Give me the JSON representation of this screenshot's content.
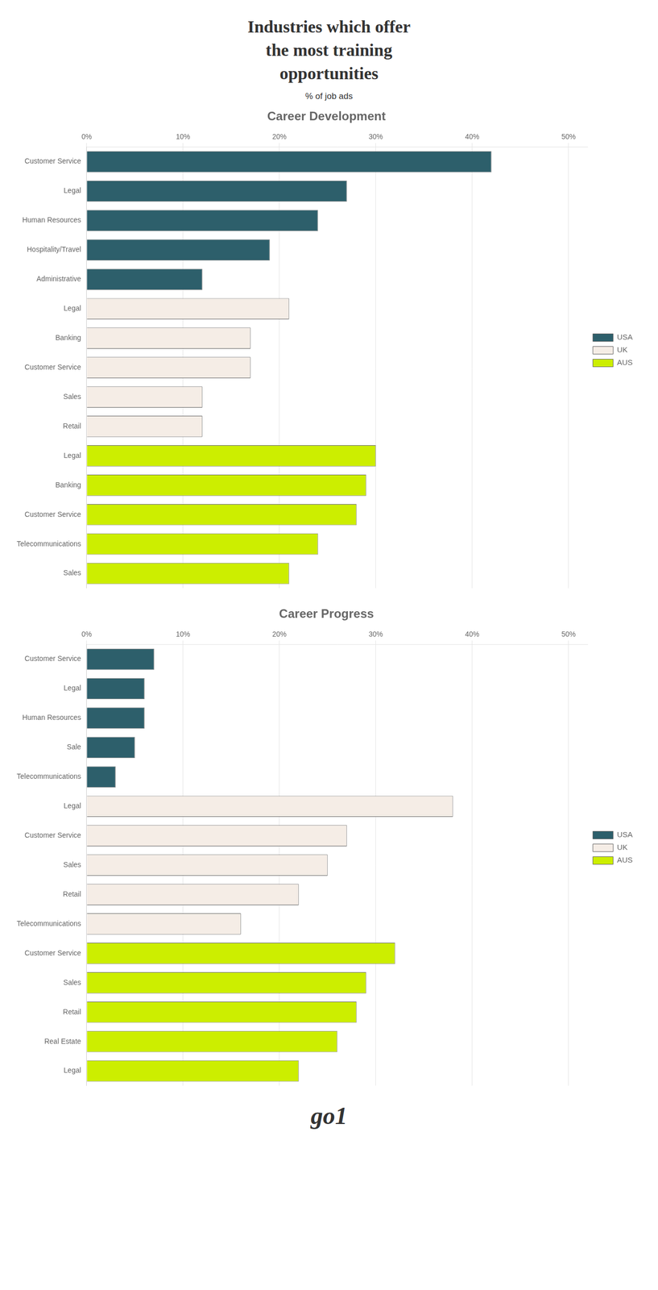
{
  "title": "Industries which offer\nthe most training\nopportunities",
  "subtitle": "% of job ads",
  "annotations": [
    "go1"
  ],
  "chart_data": [
    {
      "type": "bar",
      "orientation": "horizontal",
      "title": "Career Development",
      "categories": [
        "Customer Service",
        "Legal",
        "Human Resources",
        "Hospitality/Travel",
        "Administrative",
        "Legal",
        "Banking",
        "Customer Service",
        "Sales",
        "Retail",
        "Legal",
        "Banking",
        "Customer Service",
        "Telecommunications",
        "Sales"
      ],
      "series": [
        {
          "name": "USA",
          "color": "#2D5F6B",
          "values": [
            42,
            27,
            24,
            19,
            12,
            null,
            null,
            null,
            null,
            null,
            null,
            null,
            null,
            null,
            null
          ]
        },
        {
          "name": "UK",
          "color": "#F5EDE6",
          "values": [
            null,
            null,
            null,
            null,
            null,
            21,
            17,
            17,
            12,
            12,
            null,
            null,
            null,
            null,
            null
          ]
        },
        {
          "name": "AUS",
          "color": "#CCEE00",
          "values": [
            null,
            null,
            null,
            null,
            null,
            null,
            null,
            null,
            null,
            null,
            30,
            29,
            28,
            24,
            21
          ]
        }
      ],
      "xlim": [
        0,
        52
      ],
      "xticks": [
        {
          "value": 0,
          "label": "0%"
        },
        {
          "value": 10,
          "label": "10%"
        },
        {
          "value": 20,
          "label": "20%"
        },
        {
          "value": 30,
          "label": "30%"
        },
        {
          "value": 40,
          "label": "40%"
        },
        {
          "value": 50,
          "label": "50%"
        }
      ],
      "grid": true,
      "legend": "right"
    },
    {
      "type": "bar",
      "orientation": "horizontal",
      "title": "Career Progress",
      "categories": [
        "Customer Service",
        "Legal",
        "Human Resources",
        "Sale",
        "Telecommunications",
        "Legal",
        "Customer Service",
        "Sales",
        "Retail",
        "Telecommunications",
        "Customer Service",
        "Sales",
        "Retail",
        "Real Estate",
        "Legal"
      ],
      "series": [
        {
          "name": "USA",
          "color": "#2D5F6B",
          "values": [
            7,
            6,
            6,
            5,
            3,
            null,
            null,
            null,
            null,
            null,
            null,
            null,
            null,
            null,
            null
          ]
        },
        {
          "name": "UK",
          "color": "#F5EDE6",
          "values": [
            null,
            null,
            null,
            null,
            null,
            38,
            27,
            25,
            22,
            16,
            null,
            null,
            null,
            null,
            null
          ]
        },
        {
          "name": "AUS",
          "color": "#CCEE00",
          "values": [
            null,
            null,
            null,
            null,
            null,
            null,
            null,
            null,
            null,
            null,
            32,
            29,
            28,
            26,
            22
          ]
        }
      ],
      "xlim": [
        0,
        52
      ],
      "xticks": [
        {
          "value": 0,
          "label": "0%"
        },
        {
          "value": 10,
          "label": "10%"
        },
        {
          "value": 20,
          "label": "20%"
        },
        {
          "value": 30,
          "label": "30%"
        },
        {
          "value": 40,
          "label": "40%"
        },
        {
          "value": 50,
          "label": "50%"
        }
      ],
      "grid": true,
      "legend": "right"
    }
  ]
}
